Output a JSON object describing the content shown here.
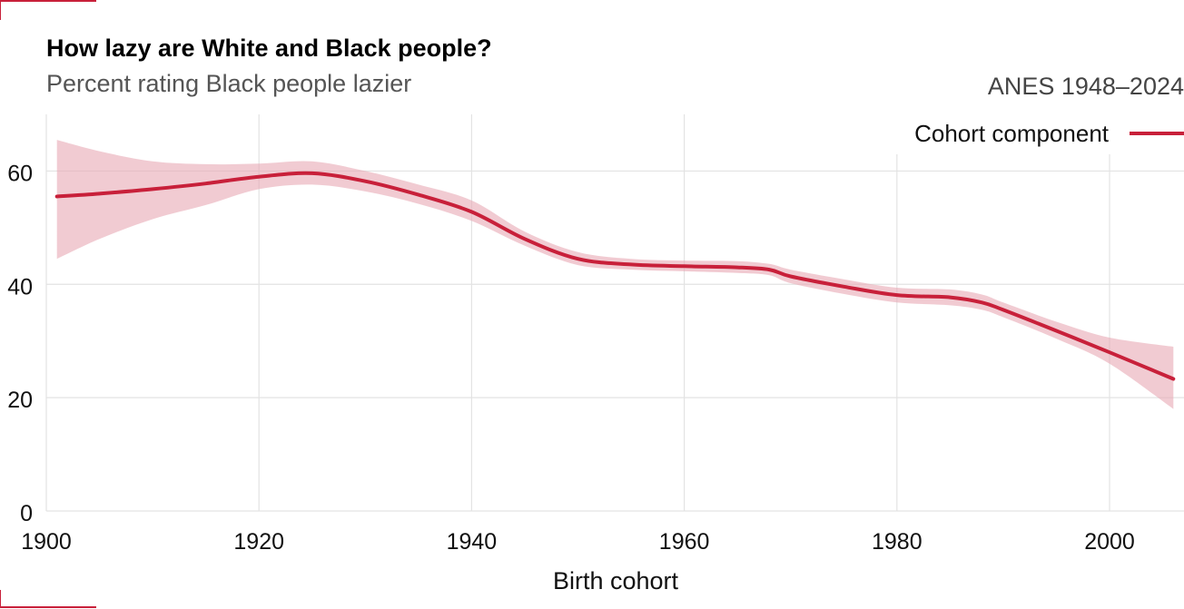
{
  "chart_data": {
    "type": "line",
    "title": "How lazy are White and Black people?",
    "subtitle": "Percent rating Black people lazier",
    "source": "ANES 1948–2024",
    "xlabel": "Birth cohort",
    "ylabel": "",
    "xlim": [
      1900,
      2007
    ],
    "ylim": [
      0,
      70
    ],
    "xticks": [
      1900,
      1920,
      1940,
      1960,
      1980,
      2000
    ],
    "yticks": [
      0,
      20,
      40,
      60
    ],
    "grid": true,
    "legend_position": "top-right",
    "series": [
      {
        "name": "Cohort component",
        "color": "#c8203a",
        "band_color": "#e8a9b4",
        "x": [
          1901,
          1905,
          1910,
          1915,
          1920,
          1925,
          1930,
          1935,
          1940,
          1945,
          1950,
          1955,
          1960,
          1965,
          1968,
          1970,
          1975,
          1980,
          1985,
          1988,
          1990,
          1995,
          2000,
          2006
        ],
        "y": [
          55.5,
          56.0,
          56.8,
          57.8,
          59.0,
          59.6,
          58.2,
          55.8,
          52.8,
          48.0,
          44.5,
          43.5,
          43.2,
          43.0,
          42.6,
          41.4,
          39.6,
          38.1,
          37.7,
          36.8,
          35.5,
          31.8,
          28.0,
          23.3
        ],
        "lower": [
          44.5,
          48.0,
          51.5,
          54.0,
          56.8,
          57.6,
          56.4,
          54.2,
          51.2,
          46.8,
          43.4,
          42.6,
          42.3,
          42.0,
          41.6,
          40.2,
          38.3,
          36.8,
          36.3,
          35.5,
          34.2,
          30.4,
          26.0,
          18.0
        ],
        "upper": [
          65.5,
          63.5,
          61.7,
          61.2,
          61.3,
          61.7,
          60.0,
          57.6,
          54.8,
          49.3,
          45.7,
          44.5,
          44.2,
          44.1,
          43.6,
          42.6,
          40.9,
          39.4,
          39.1,
          38.2,
          36.8,
          33.4,
          30.6,
          29.0
        ]
      }
    ]
  }
}
